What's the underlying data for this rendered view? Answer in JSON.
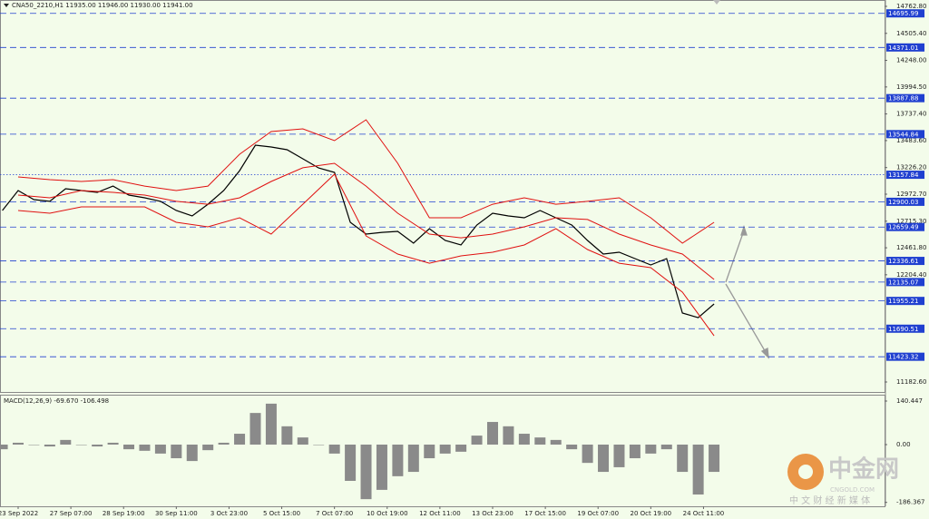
{
  "header": {
    "title": "CNA50_2210,H1  11935.00 11946.00 11930.00 11941.00"
  },
  "chart_data": [
    {
      "type": "line",
      "x": [
        -3,
        0,
        3,
        6,
        9,
        12,
        15,
        18,
        21,
        24,
        27,
        30,
        33,
        36,
        39,
        42,
        45,
        48,
        51,
        54,
        57,
        60,
        63,
        66,
        69,
        72,
        75,
        78,
        81,
        84,
        87,
        90,
        93,
        96,
        99,
        102,
        105,
        108,
        111,
        114,
        117,
        120,
        123,
        126,
        129,
        132
      ],
      "series": [
        {
          "name": "price",
          "color": "#000000",
          "x": [
            -3,
            0,
            3,
            6,
            9,
            12,
            15,
            18,
            21,
            24,
            27,
            30,
            33,
            36,
            39,
            42,
            45,
            48,
            51,
            54,
            57,
            60,
            63,
            66,
            69,
            72,
            75,
            78,
            81,
            84,
            87,
            90,
            93,
            96,
            99,
            102,
            105,
            108,
            111,
            114,
            117,
            120,
            123,
            126,
            129,
            132
          ],
          "values": [
            12817,
            13007,
            12921,
            12904,
            13025,
            13007,
            12990,
            13050,
            12964,
            12938,
            12904,
            12817,
            12765,
            12877,
            13007,
            13197,
            13440,
            13422,
            13396,
            13310,
            13223,
            13180,
            12705,
            12592,
            12609,
            12618,
            12506,
            12644,
            12532,
            12488,
            12679,
            12791,
            12765,
            12748,
            12817,
            12748,
            12679,
            12532,
            12402,
            12419,
            12359,
            12298,
            12359,
            11840,
            11796,
            11926
          ]
        },
        {
          "name": "upper",
          "color": "#e01010",
          "x": [
            0,
            6,
            12,
            18,
            24,
            30,
            36,
            42,
            48,
            54,
            60,
            66,
            72,
            78,
            84,
            90,
            96,
            102,
            108,
            114,
            120,
            126,
            132
          ],
          "values": [
            13137,
            13111,
            13094,
            13111,
            13050,
            13007,
            13050,
            13353,
            13569,
            13595,
            13483,
            13682,
            13267,
            12748,
            12748,
            12877,
            12938,
            12877,
            12904,
            12938,
            12748,
            12506,
            12705
          ]
        },
        {
          "name": "middle",
          "color": "#e01010",
          "x": [
            0,
            6,
            12,
            18,
            24,
            30,
            36,
            42,
            48,
            54,
            60,
            66,
            72,
            78,
            84,
            90,
            96,
            102,
            108,
            114,
            120,
            126,
            132
          ],
          "values": [
            12964,
            12938,
            13007,
            12990,
            12964,
            12904,
            12877,
            12938,
            13094,
            13224,
            13267,
            13050,
            12791,
            12592,
            12557,
            12592,
            12661,
            12748,
            12731,
            12592,
            12488,
            12402,
            12160
          ]
        },
        {
          "name": "lower",
          "color": "#e01010",
          "x": [
            0,
            6,
            12,
            18,
            24,
            30,
            36,
            42,
            48,
            54,
            60,
            66,
            72,
            78,
            84,
            90,
            96,
            102,
            108,
            114,
            120,
            126,
            132
          ],
          "values": [
            12817,
            12791,
            12852,
            12852,
            12852,
            12705,
            12661,
            12748,
            12592,
            12877,
            13163,
            12575,
            12402,
            12315,
            12385,
            12419,
            12488,
            12644,
            12445,
            12315,
            12272,
            12039,
            11623
          ]
        }
      ],
      "xlim": [
        -3.44,
        164.34
      ],
      "ylim": [
        11087.5,
        14823.3
      ],
      "yticks": [
        {
          "value": 14762.8,
          "label": "14762.80"
        },
        {
          "value": 14505.4,
          "label": "14505.40"
        },
        {
          "value": 14248,
          "label": "14248.00"
        },
        {
          "value": 13994.5,
          "label": "13994.50"
        },
        {
          "value": 13737.4,
          "label": "13737.40"
        },
        {
          "value": 13483.6,
          "label": "13483.60"
        },
        {
          "value": 13226.2,
          "label": "13226.20"
        },
        {
          "value": 12972.7,
          "label": "12972.70"
        },
        {
          "value": 12715.3,
          "label": "12715.30"
        },
        {
          "value": 12461.8,
          "label": "12461.80"
        },
        {
          "value": 12204.4,
          "label": "12204.40"
        },
        {
          "value": 11182.6,
          "label": "11182.60"
        }
      ],
      "levels": [
        {
          "value": 14695.99,
          "style": "dash"
        },
        {
          "value": 14371.01,
          "style": "dash"
        },
        {
          "value": 13887.88,
          "style": "dash"
        },
        {
          "value": 13544.84,
          "style": "dash"
        },
        {
          "value": 13157.84,
          "style": "dot"
        },
        {
          "value": 12900.03,
          "style": "dash"
        },
        {
          "value": 12659.49,
          "style": "dash"
        },
        {
          "value": 12336.61,
          "style": "dash"
        },
        {
          "value": 12135.07,
          "style": "dash"
        },
        {
          "value": 11955.21,
          "style": "dash"
        },
        {
          "value": 11690.51,
          "style": "dash"
        },
        {
          "value": 11423.32,
          "style": "dash"
        }
      ],
      "level_color": "#2040d0",
      "xticks": [
        {
          "value": 0,
          "label": "23 Sep 2022"
        },
        {
          "value": 10,
          "label": "27 Sep 07:00"
        },
        {
          "value": 20,
          "label": "28 Sep 19:00"
        },
        {
          "value": 30,
          "label": "30 Sep 11:00"
        },
        {
          "value": 40,
          "label": "3 Oct 23:00"
        },
        {
          "value": 50,
          "label": "5 Oct 15:00"
        },
        {
          "value": 60,
          "label": "7 Oct 07:00"
        },
        {
          "value": 70,
          "label": "10 Oct 19:00"
        },
        {
          "value": 80,
          "label": "12 Oct 11:00"
        },
        {
          "value": 90,
          "label": "13 Oct 23:00"
        },
        {
          "value": 100,
          "label": "17 Oct 15:00"
        },
        {
          "value": 110,
          "label": "19 Oct 07:00"
        },
        {
          "value": 120,
          "label": "20 Oct 19:00"
        },
        {
          "value": 130,
          "label": "24 Oct 11:00"
        }
      ]
    },
    {
      "type": "bar",
      "title": "MACD(12,26,9) -69.670 -106.498",
      "x": [
        -3,
        0,
        3,
        6,
        9,
        12,
        15,
        18,
        21,
        24,
        27,
        30,
        33,
        36,
        39,
        42,
        45,
        48,
        51,
        54,
        57,
        60,
        63,
        66,
        69,
        72,
        75,
        78,
        81,
        84,
        87,
        90,
        93,
        96,
        99,
        102,
        105,
        108,
        111,
        114,
        117,
        120,
        123,
        126,
        129,
        132
      ],
      "values": [
        -15,
        6,
        0,
        -6,
        15,
        0,
        -6,
        6,
        -15,
        -20,
        -29,
        -44,
        -53,
        -18,
        6,
        35,
        102,
        132,
        59,
        23,
        0,
        -29,
        -117,
        -176,
        -146,
        -102,
        -88,
        -44,
        -29,
        -23,
        29,
        73,
        59,
        35,
        23,
        15,
        -15,
        -59,
        -88,
        -73,
        -44,
        -29,
        -15,
        -88,
        -161,
        -88
      ],
      "color": "#8a8a8a",
      "xlim": [
        -3.44,
        164.34
      ],
      "ylim": [
        -199,
        158
      ],
      "yticks": [
        140.447,
        {
          "value": 0,
          "label": "0.00"
        },
        -186.367
      ]
    }
  ],
  "watermark": {
    "brand": "中金网",
    "site": "CNGOLD.COM",
    "tagline": "中 文 财 经 新 媒 体"
  }
}
